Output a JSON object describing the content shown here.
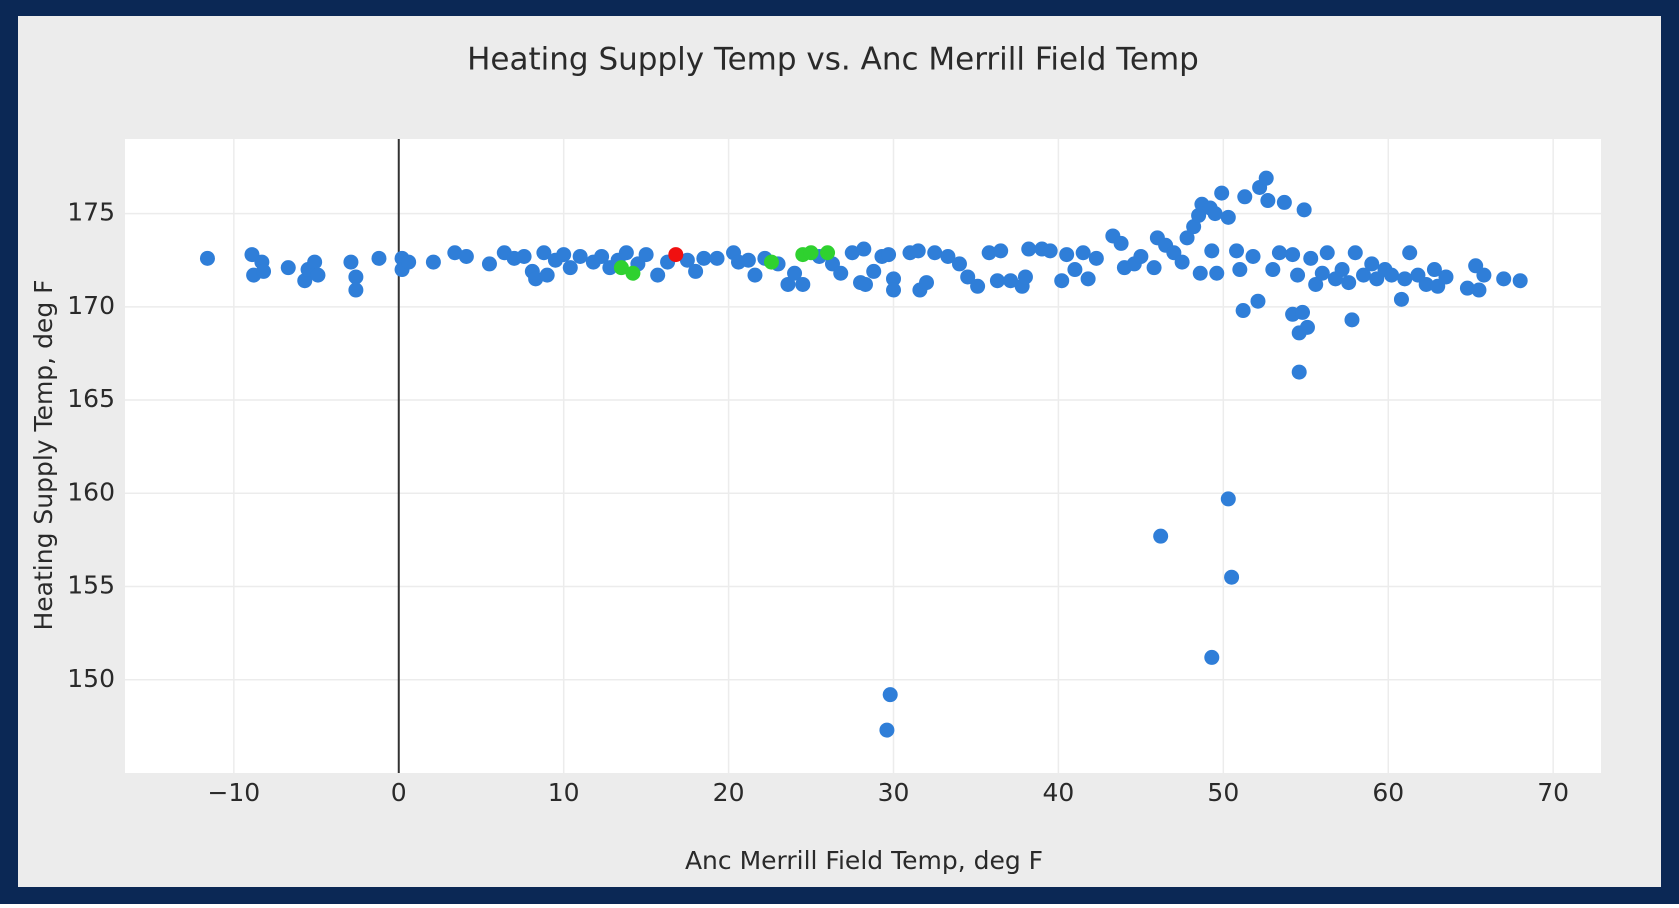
{
  "chart_data": {
    "type": "scatter",
    "title": "Heating Supply Temp vs. Anc Merrill Field Temp",
    "x_label": "Anc Merrill Field Temp, deg F",
    "y_label": "Heating Supply Temp, deg F",
    "xlim": [
      -16.6,
      72.9
    ],
    "ylim": [
      145,
      179
    ],
    "xticks": [
      {
        "value": -10,
        "label": "−10"
      },
      0,
      10,
      20,
      30,
      40,
      50,
      60,
      70
    ],
    "yticks": [
      150,
      155,
      160,
      165,
      170,
      175
    ],
    "grid": true,
    "zeroline": true,
    "series": [
      {
        "color": "#2f7ed8",
        "x": [
          -11.6,
          -8.9,
          -8.8,
          -8.3,
          -8.2,
          -6.7,
          -5.7,
          -5.5,
          -5.1,
          -4.9,
          -2.9,
          -2.6,
          -2.6,
          -1.2,
          0.2,
          0.2,
          0.6,
          2.1,
          3.4,
          4.1,
          5.5,
          6.4,
          7.0,
          7.6,
          8.1,
          8.3,
          8.8,
          9.0,
          9.5,
          10.0,
          10.4,
          11.0,
          11.8,
          12.3,
          12.8,
          13.3,
          13.8,
          14.5,
          15.0,
          15.7,
          16.3,
          17.5,
          18.0,
          18.5,
          19.3,
          20.3,
          20.6,
          21.2,
          21.6,
          22.2,
          23.0,
          23.6,
          24.0,
          24.5,
          25.5,
          26.3,
          26.8,
          27.5,
          28.0,
          28.3,
          28.8,
          28.2,
          29.3,
          29.7,
          30.0,
          30.0,
          31.0,
          31.5,
          31.6,
          32.0,
          32.5,
          33.3,
          34.0,
          34.5,
          35.1,
          35.8,
          36.3,
          36.5,
          37.1,
          37.8,
          38.0,
          38.2,
          39.0,
          39.5,
          40.2,
          40.5,
          41.0,
          41.5,
          41.8,
          42.3,
          43.3,
          43.8,
          44.0,
          44.6,
          45.0,
          45.8,
          46.0,
          46.5,
          47.0,
          47.5,
          47.8,
          48.2,
          48.5,
          48.7,
          49.2,
          49.5,
          49.9,
          48.6,
          49.3,
          49.6,
          50.3,
          50.8,
          51.0,
          51.3,
          51.2,
          51.8,
          52.1,
          52.2,
          52.6,
          52.7,
          53.0,
          53.4,
          53.7,
          54.2,
          54.2,
          54.5,
          54.6,
          54.8,
          54.9,
          55.1,
          55.3,
          55.6,
          56.0,
          56.3,
          56.8,
          57.2,
          57.6,
          57.8,
          58.0,
          58.5,
          59.0,
          59.3,
          59.8,
          60.2,
          60.8,
          61.0,
          61.3,
          61.8,
          62.3,
          62.8,
          63.0,
          63.5,
          64.8,
          65.3,
          65.5,
          65.8,
          67.0,
          68.0,
          54.6,
          50.3,
          46.2,
          50.5,
          49.3,
          29.8,
          29.6
        ],
        "values": [
          172.6,
          172.8,
          171.7,
          172.4,
          171.9,
          172.1,
          171.4,
          172.0,
          172.4,
          171.7,
          172.4,
          171.6,
          170.9,
          172.6,
          172.6,
          172.0,
          172.4,
          172.4,
          172.9,
          172.7,
          172.3,
          172.9,
          172.6,
          172.7,
          171.9,
          171.5,
          172.9,
          171.7,
          172.5,
          172.8,
          172.1,
          172.7,
          172.4,
          172.7,
          172.1,
          172.5,
          172.9,
          172.3,
          172.8,
          171.7,
          172.4,
          172.5,
          171.9,
          172.6,
          172.6,
          172.9,
          172.4,
          172.5,
          171.7,
          172.6,
          172.3,
          171.2,
          171.8,
          171.2,
          172.7,
          172.3,
          171.8,
          172.9,
          171.3,
          171.2,
          171.9,
          173.1,
          172.7,
          172.8,
          171.5,
          170.9,
          172.9,
          173.0,
          170.9,
          171.3,
          172.9,
          172.7,
          172.3,
          171.6,
          171.1,
          172.9,
          171.4,
          173.0,
          171.4,
          171.1,
          171.6,
          173.1,
          173.1,
          173.0,
          171.4,
          172.8,
          172.0,
          172.9,
          171.5,
          172.6,
          173.8,
          173.4,
          172.1,
          172.3,
          172.7,
          172.1,
          173.7,
          173.3,
          172.9,
          172.4,
          173.7,
          174.3,
          174.9,
          175.5,
          175.3,
          175.0,
          176.1,
          171.8,
          173.0,
          171.8,
          174.8,
          173.0,
          172.0,
          175.9,
          169.8,
          172.7,
          170.3,
          176.4,
          176.9,
          175.7,
          172.0,
          172.9,
          175.6,
          172.8,
          169.6,
          171.7,
          168.6,
          169.7,
          175.2,
          168.9,
          172.6,
          171.2,
          171.8,
          172.9,
          171.5,
          172.0,
          171.3,
          169.3,
          172.9,
          171.7,
          172.3,
          171.5,
          172.0,
          171.7,
          170.4,
          171.5,
          172.9,
          171.7,
          171.2,
          172.0,
          171.1,
          171.6,
          171.0,
          172.2,
          170.9,
          171.7,
          171.5,
          171.4,
          166.5,
          159.7,
          157.7,
          155.5,
          151.2,
          149.2,
          147.3
        ]
      },
      {
        "color": "#2fd12f",
        "x": [
          13.5,
          14.2,
          22.6,
          24.5,
          25.0,
          26.0
        ],
        "values": [
          172.1,
          171.8,
          172.4,
          172.8,
          172.9,
          172.9
        ]
      },
      {
        "color": "#f01010",
        "x": [
          16.8
        ],
        "values": [
          172.8
        ]
      }
    ]
  }
}
